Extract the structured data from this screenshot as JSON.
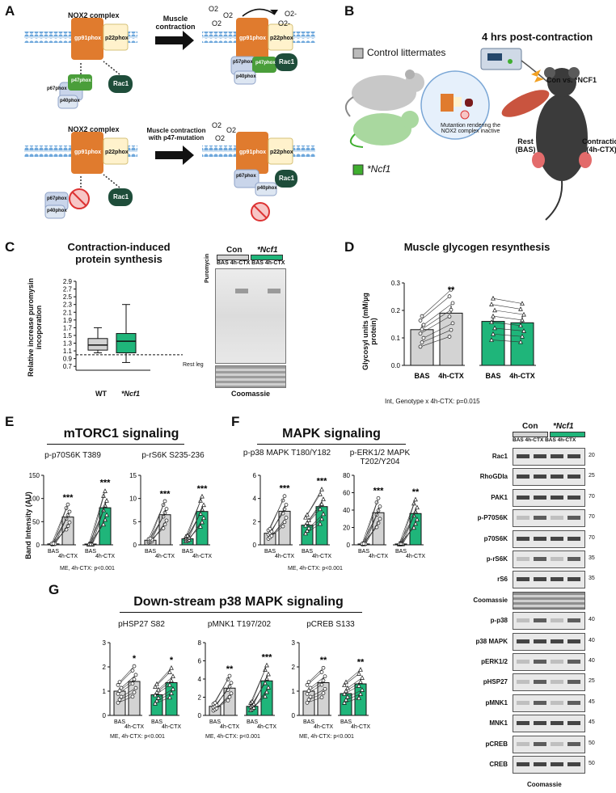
{
  "panels": {
    "A": "A",
    "B": "B",
    "C": "C",
    "D": "D",
    "E": "E",
    "F": "F",
    "G": "G"
  },
  "panelA": {
    "top_title": "NOX2 complex",
    "bottom_title": "NOX2 complex",
    "arrow1": "Muscle contraction",
    "arrow2": "Muscle contraction with p47-mutation",
    "gp91": "gp91phox",
    "p22": "p22phox",
    "p57": "p57phox",
    "p47": "p47phox",
    "p67": "p67phox",
    "p40": "p40phox",
    "rac1": "Rac1",
    "o2": "O2",
    "o2minus": "O2-"
  },
  "panelB": {
    "title": "4 hrs post-contraction",
    "control": "Control littermates",
    "ncf1": "*Ncf1",
    "mutation": "Mutantion rendering the NOX2 complex inactive",
    "con_vs": "Con vs. *NCF1",
    "rest": "Rest (BAS)",
    "contraction": "Contraction (4h-CTX)"
  },
  "panelC": {
    "title": "Contraction-induced protein synthesis",
    "ylabel": "Relative increase puromysin incoporation",
    "rest_leg": "Rest leg",
    "blot_con": "Con",
    "blot_ncf1": "*Ncf1",
    "blot_lanes": "BAS 4h-CTX BAS 4h-CTX",
    "puromycin": "Puromycin",
    "coomassie": "Coomassie"
  },
  "panelD": {
    "title": "Muscle glycogen resynthesis",
    "ylabel": "Glycosyl units (mM/µg protein)",
    "footnote": "Int, Genotype x 4h-CTX: p=0.015",
    "sig": "**"
  },
  "panelE": {
    "title": "mTORC1 signaling",
    "sub1": "p-p70S6K T389",
    "sub2": "p-rS6K S235-236",
    "ylabel": "Band Intensity (AU)",
    "footnote": "ME, 4h-CTX: p<0.001"
  },
  "panelF": {
    "title": "MAPK signaling",
    "sub1": "p-p38 MAPK T180/Y182",
    "sub2": "p-ERK1/2 MAPK T202/Y204",
    "footnote": "ME, 4h-CTX: p<0.001"
  },
  "panelG": {
    "title": "Down-stream p38 MAPK signaling",
    "sub1": "pHSP27 S82",
    "sub2": "pMNK1 T197/202",
    "sub3": "pCREB S133",
    "footnote": "ME, 4h-CTX: p<0.001"
  },
  "western": {
    "con": "Con",
    "ncf1": "*Ncf1",
    "lanes": "BAS 4h-CTX BAS 4h-CTX",
    "rows": [
      {
        "label": "Rac1",
        "kd": "20"
      },
      {
        "label": "RhoGDIa",
        "kd": "25"
      },
      {
        "label": "PAK1",
        "kd": "70"
      },
      {
        "label": "p-P70S6K",
        "kd": "70"
      },
      {
        "label": "p70S6K",
        "kd": "70"
      },
      {
        "label": "p-rS6K",
        "kd": "35"
      },
      {
        "label": "rS6",
        "kd": "35"
      },
      {
        "label": "Coomassie",
        "kd": ""
      },
      {
        "label": "p-p38",
        "kd": "40"
      },
      {
        "label": "p38 MAPK",
        "kd": "40"
      },
      {
        "label": "pERK1/2",
        "kd": "40"
      },
      {
        "label": "pHSP27",
        "kd": "25"
      },
      {
        "label": "pMNK1",
        "kd": "45"
      },
      {
        "label": "MNK1",
        "kd": "45"
      },
      {
        "label": "pCREB",
        "kd": "50"
      },
      {
        "label": "CREB",
        "kd": "50"
      }
    ],
    "bottom": "Coomassie"
  },
  "colors": {
    "con": "#d3d3d3",
    "ncf1": "#1fb57a",
    "orange": "#e07b2e"
  },
  "chart_data": [
    {
      "type": "box",
      "title": "Contraction-induced protein synthesis",
      "categories": [
        "WT",
        "*Ncf1"
      ],
      "q1": [
        1.12,
        1.05
      ],
      "median": [
        1.25,
        1.35
      ],
      "q3": [
        1.42,
        1.55
      ],
      "min": [
        1.05,
        0.8
      ],
      "max": [
        1.7,
        2.3
      ],
      "ylim": [
        0.6,
        2.9
      ],
      "yticks": [
        "0.7",
        "0.9",
        "1.1",
        "1.3",
        "1.5",
        "1.7",
        "1.9",
        "2.1",
        "2.3",
        "2.5",
        "2.7",
        "2.9"
      ],
      "ref_line": 1.0
    },
    {
      "type": "bar",
      "title": "Muscle glycogen resynthesis",
      "categories": [
        "BAS",
        "4h-CTX",
        "BAS",
        "4h-CTX"
      ],
      "values": [
        0.13,
        0.19,
        0.16,
        0.155
      ],
      "ylim": [
        0,
        0.3
      ],
      "yticks": [
        "0.0",
        "0.1",
        "0.2",
        "0.3"
      ]
    },
    {
      "type": "bar",
      "title": "p-p70S6K T389",
      "categories": [
        "BAS",
        "4h-CTX",
        "BAS",
        "4h-CTX"
      ],
      "values": [
        2,
        60,
        1,
        80
      ],
      "ylim": [
        0,
        150
      ],
      "yticks": [
        "0",
        "50",
        "100",
        "150"
      ],
      "sig": [
        "***",
        "***"
      ]
    },
    {
      "type": "bar",
      "title": "p-rS6K S235-236",
      "categories": [
        "BAS",
        "4h-CTX",
        "BAS",
        "4h-CTX"
      ],
      "values": [
        1,
        6.5,
        1.3,
        7.2
      ],
      "ylim": [
        0,
        15
      ],
      "yticks": [
        "0",
        "5",
        "10",
        "15"
      ],
      "sig": [
        "***",
        "***"
      ]
    },
    {
      "type": "bar",
      "title": "p-p38 MAPK T180/Y182",
      "categories": [
        "BAS",
        "4h-CTX",
        "BAS",
        "4h-CTX"
      ],
      "values": [
        1,
        2.9,
        1.7,
        3.3
      ],
      "ylim": [
        0,
        6
      ],
      "yticks": [
        "0",
        "2",
        "4",
        "6"
      ],
      "sig": [
        "***",
        "***"
      ]
    },
    {
      "type": "bar",
      "title": "p-ERK1/2 MAPK T202/Y204",
      "categories": [
        "BAS",
        "4h-CTX",
        "BAS",
        "4h-CTX"
      ],
      "values": [
        1,
        37,
        1,
        36
      ],
      "ylim": [
        0,
        80
      ],
      "yticks": [
        "0",
        "20",
        "40",
        "60",
        "80"
      ],
      "sig": [
        "***",
        "**"
      ]
    },
    {
      "type": "bar",
      "title": "pHSP27 S82",
      "categories": [
        "BAS",
        "4h-CTX",
        "BAS",
        "4h-CTX"
      ],
      "values": [
        1,
        1.4,
        0.85,
        1.35
      ],
      "ylim": [
        0,
        3
      ],
      "yticks": [
        "0",
        "1",
        "2",
        "3"
      ],
      "sig": [
        "*",
        "*"
      ]
    },
    {
      "type": "bar",
      "title": "pMNK1 T197/202",
      "categories": [
        "BAS",
        "4h-CTX",
        "BAS",
        "4h-CTX"
      ],
      "values": [
        1,
        3,
        1,
        3.8
      ],
      "ylim": [
        0,
        8
      ],
      "yticks": [
        "0",
        "2",
        "4",
        "6",
        "8"
      ],
      "sig": [
        "**",
        "***"
      ]
    },
    {
      "type": "bar",
      "title": "pCREB S133",
      "categories": [
        "BAS",
        "4h-CTX",
        "BAS",
        "4h-CTX"
      ],
      "values": [
        1,
        1.35,
        0.9,
        1.3
      ],
      "ylim": [
        0,
        3
      ],
      "yticks": [
        "0",
        "1",
        "2",
        "3"
      ],
      "sig": [
        "**",
        "**"
      ]
    }
  ]
}
